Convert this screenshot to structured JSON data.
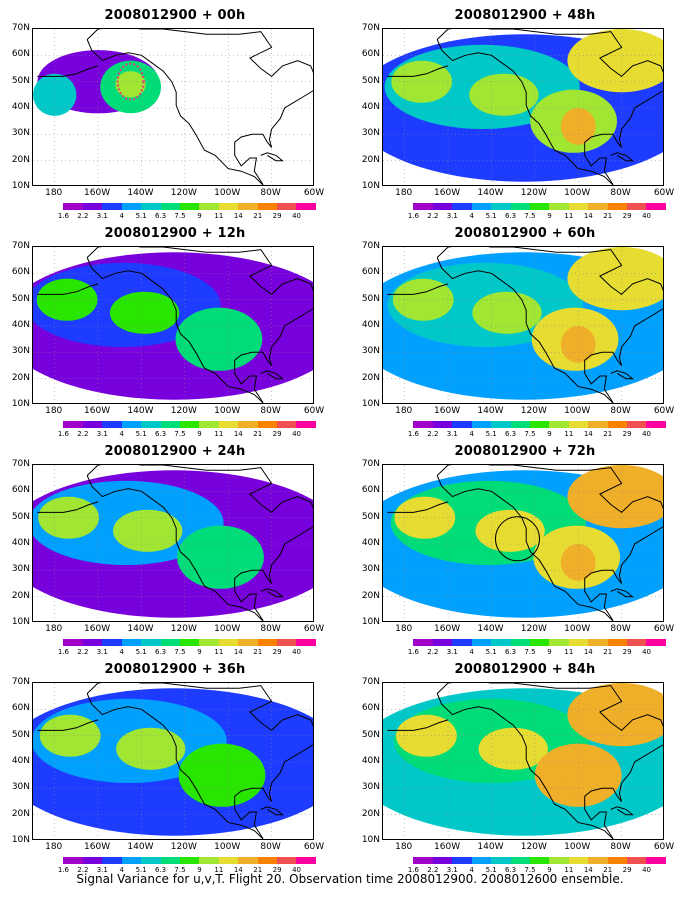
{
  "panels": [
    {
      "title": "2008012900 + 00h",
      "lead": 0
    },
    {
      "title": "2008012900 + 48h",
      "lead": 48
    },
    {
      "title": "2008012900 + 12h",
      "lead": 12
    },
    {
      "title": "2008012900 + 60h",
      "lead": 60
    },
    {
      "title": "2008012900 + 24h",
      "lead": 24
    },
    {
      "title": "2008012900 + 72h",
      "lead": 72
    },
    {
      "title": "2008012900 + 36h",
      "lead": 36
    },
    {
      "title": "2008012900 + 84h",
      "lead": 84
    }
  ],
  "axes": {
    "y_labels": [
      "70N",
      "60N",
      "50N",
      "40N",
      "30N",
      "20N",
      "10N"
    ],
    "x_labels": [
      "180",
      "160W",
      "140W",
      "120W",
      "100W",
      "80W",
      "60W"
    ]
  },
  "colorbar": {
    "labels": [
      "1.6",
      "2.2",
      "3.1",
      "4",
      "5.1",
      "6.3",
      "7.5",
      "9",
      "11",
      "14",
      "21",
      "29",
      "40"
    ],
    "colors": [
      "#ffffff",
      "#a000c8",
      "#7800dc",
      "#1e3cff",
      "#00a0ff",
      "#00c8c8",
      "#00dc78",
      "#28e600",
      "#a0e632",
      "#e6dc32",
      "#f0af28",
      "#fa8200",
      "#f05050",
      "#ff00a0"
    ]
  },
  "footer": "Signal Variance for u,v,T. Flight 20. Observation time 2008012900. 2008012600 ensemble."
}
